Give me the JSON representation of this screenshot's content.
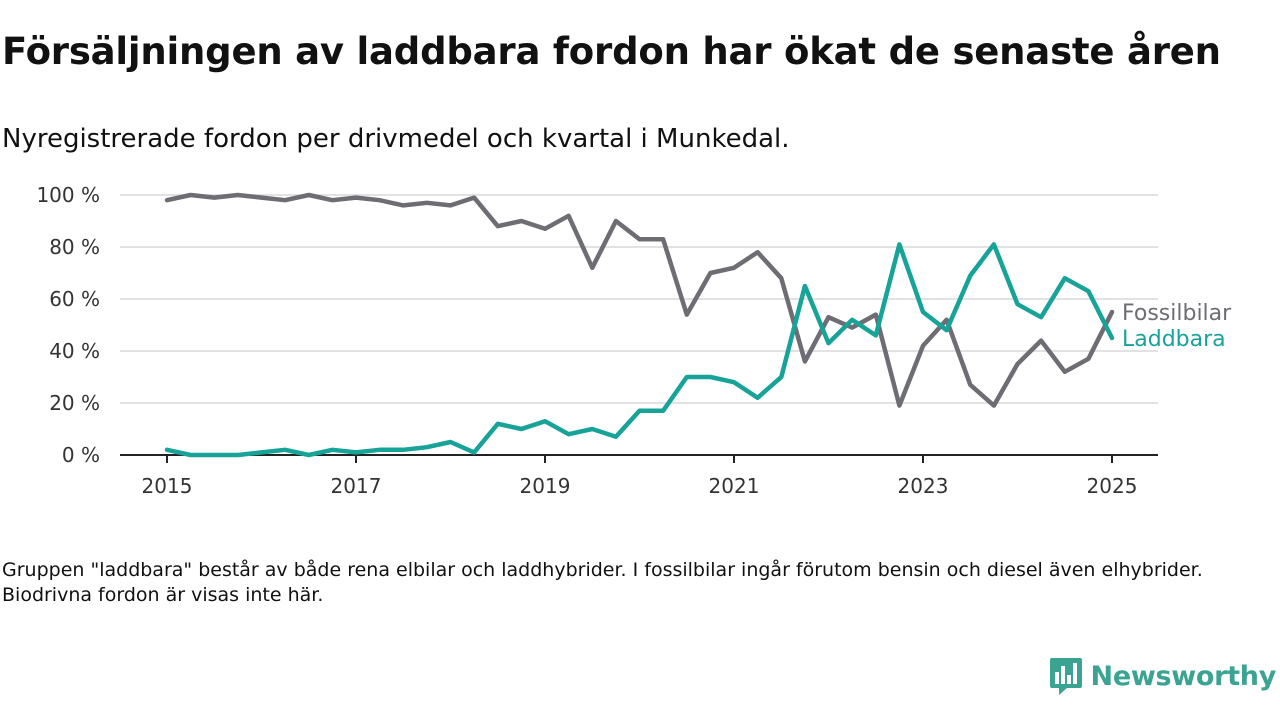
{
  "header": {
    "title": "Försäljningen av laddbara fordon har ökat de senaste åren",
    "subtitle": "Nyregistrerade fordon per drivmedel och kvartal i Munkedal."
  },
  "footnote": "Gruppen \"laddbara\" består av både rena elbilar och laddhybrider. I fossilbilar ingår förutom bensin och diesel även elhybrider. Biodrivna fordon är visas inte här.",
  "brand": {
    "name": "Newsworthy",
    "icon": "newsworthy-logo-icon",
    "color": "#3aa391"
  },
  "chart_data": {
    "type": "line",
    "title": "",
    "xlabel": "",
    "ylabel": "",
    "x_start": "2015 Q1",
    "x_frequency": "quarterly",
    "xticks": [
      2015,
      2017,
      2019,
      2021,
      2023,
      2025
    ],
    "xtick_labels": [
      "2015",
      "2017",
      "2019",
      "2021",
      "2023",
      "2025"
    ],
    "xlim": [
      2015,
      2025
    ],
    "ylim": [
      0,
      100
    ],
    "yticks": [
      0,
      20,
      40,
      60,
      80,
      100
    ],
    "ytick_labels": [
      "0 %",
      "20 %",
      "40 %",
      "60 %",
      "80 %",
      "100 %"
    ],
    "grid": "horizontal",
    "legend": "direct labels at line ends (right)",
    "series": [
      {
        "name": "Fossilbilar",
        "color": "#6e6d73",
        "values": [
          98,
          100,
          99,
          100,
          99,
          98,
          100,
          98,
          99,
          98,
          96,
          97,
          96,
          99,
          88,
          90,
          87,
          92,
          72,
          90,
          83,
          83,
          54,
          70,
          72,
          78,
          68,
          36,
          53,
          49,
          54,
          19,
          42,
          52,
          27,
          19,
          35,
          44,
          32,
          37,
          55
        ]
      },
      {
        "name": "Laddbara",
        "color": "#18a398",
        "values": [
          2,
          0,
          0,
          0,
          1,
          2,
          0,
          2,
          1,
          2,
          2,
          3,
          5,
          1,
          12,
          10,
          13,
          8,
          10,
          7,
          17,
          17,
          30,
          30,
          28,
          22,
          30,
          65,
          43,
          52,
          46,
          81,
          55,
          48,
          69,
          81,
          58,
          53,
          68,
          63,
          45
        ]
      }
    ]
  }
}
